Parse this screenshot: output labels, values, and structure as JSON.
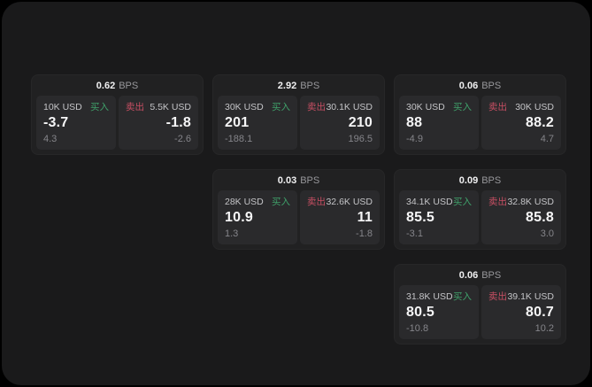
{
  "labels": {
    "bps": "BPS",
    "buy": "买入",
    "sell": "卖出"
  },
  "colors": {
    "buy": "#3fa06a",
    "sell": "#c74f63",
    "panel_bg": "#1a1a1b",
    "card_bg": "#212122",
    "subcard_bg": "#2a2a2c"
  },
  "cards": [
    {
      "bps": "0.62",
      "buy": {
        "amount": "10K USD",
        "main": "-3.7",
        "sub": "4.3"
      },
      "sell": {
        "amount": "5.5K USD",
        "main": "-1.8",
        "sub": "-2.6"
      }
    },
    {
      "bps": "2.92",
      "buy": {
        "amount": "30K USD",
        "main": "201",
        "sub": "-188.1"
      },
      "sell": {
        "amount": "30.1K USD",
        "main": "210",
        "sub": "196.5"
      }
    },
    {
      "bps": "0.03",
      "buy": {
        "amount": "28K USD",
        "main": "10.9",
        "sub": "1.3"
      },
      "sell": {
        "amount": "32.6K USD",
        "main": "11",
        "sub": "-1.8"
      }
    },
    {
      "bps": "0.06",
      "buy": {
        "amount": "30K USD",
        "main": "88",
        "sub": "-4.9"
      },
      "sell": {
        "amount": "30K USD",
        "main": "88.2",
        "sub": "4.7"
      }
    },
    {
      "bps": "0.09",
      "buy": {
        "amount": "34.1K USD",
        "main": "85.5",
        "sub": "-3.1"
      },
      "sell": {
        "amount": "32.8K USD",
        "main": "85.8",
        "sub": "3.0"
      }
    },
    {
      "bps": "0.06",
      "buy": {
        "amount": "31.8K USD",
        "main": "80.5",
        "sub": "-10.8"
      },
      "sell": {
        "amount": "39.1K USD",
        "main": "80.7",
        "sub": "10.2"
      }
    }
  ]
}
